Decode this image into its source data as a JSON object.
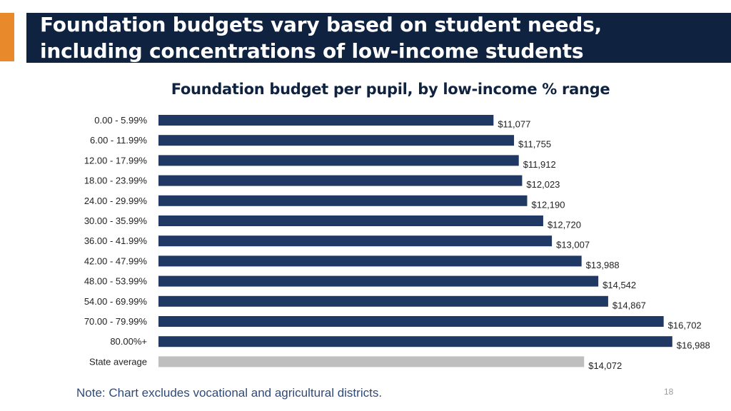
{
  "slide": {
    "title_line1": "Foundation budgets vary based on student needs,",
    "title_line2": "including concentrations of low-income students",
    "note": "Note: Chart excludes vocational and agricultural districts.",
    "page_number": "18"
  },
  "colors": {
    "header_bg": "#0f2341",
    "accent": "#e8892b",
    "bar": "#203864",
    "state_average_bar": "#bfbfbf"
  },
  "chart_data": {
    "type": "bar",
    "orientation": "horizontal",
    "title": "Foundation budget per pupil, by low-income % range",
    "xlabel": "",
    "ylabel": "",
    "xlim": [
      0,
      17000
    ],
    "grid": false,
    "legend": "none",
    "categories": [
      "0.00 - 5.99%",
      "6.00 - 11.99%",
      "12.00 - 17.99%",
      "18.00 - 23.99%",
      "24.00 - 29.99%",
      "30.00 - 35.99%",
      "36.00 - 41.99%",
      "42.00 - 47.99%",
      "48.00 - 53.99%",
      "54.00 - 69.99%",
      "70.00 - 79.99%",
      "80.00%+",
      "State average"
    ],
    "values": [
      11077,
      11755,
      11912,
      12023,
      12190,
      12720,
      13007,
      13988,
      14542,
      14867,
      16702,
      16988,
      14072
    ],
    "data_labels": [
      "$11,077",
      "$11,755",
      "$11,912",
      "$12,023",
      "$12,190",
      "$12,720",
      "$13,007",
      "$13,988",
      "$14,542",
      "$14,867",
      "$16,702",
      "$16,988",
      "$14,072"
    ],
    "highlight_category": "State average"
  }
}
